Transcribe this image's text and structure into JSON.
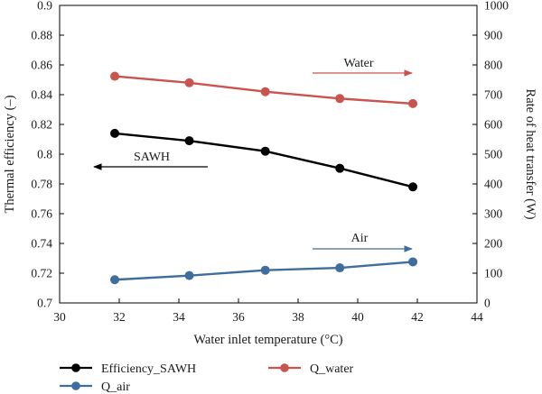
{
  "chart_data": {
    "type": "line",
    "xlabel": "Water inlet temperature (°C)",
    "ylabel_left": "Thermal efficiency (–)",
    "ylabel_right": "Rate of heat transfer (W)",
    "xlim": [
      30,
      44
    ],
    "ylim_left": [
      0.7,
      0.9
    ],
    "ylim_right": [
      0,
      1000
    ],
    "x_ticks": [
      "30",
      "32",
      "34",
      "36",
      "38",
      "40",
      "42",
      "44"
    ],
    "y_left_ticks": [
      "0.7",
      "0.72",
      "0.74",
      "0.76",
      "0.78",
      "0.8",
      "0.82",
      "0.84",
      "0.86",
      "0.88",
      "0.9"
    ],
    "y_right_ticks": [
      "0",
      "100",
      "200",
      "300",
      "400",
      "500",
      "600",
      "700",
      "800",
      "900",
      "1000"
    ],
    "grid": false,
    "legend_position": "bottom",
    "series": [
      {
        "name": "Efficiency_SAWH",
        "axis": "left",
        "color": "#000000",
        "x": [
          31.85,
          34.35,
          36.9,
          39.4,
          41.85
        ],
        "y": [
          0.814,
          0.809,
          0.802,
          0.7905,
          0.778
        ]
      },
      {
        "name": "Q_water",
        "axis": "right",
        "color": "#c9534f",
        "x": [
          31.85,
          34.35,
          36.9,
          39.4,
          41.85
        ],
        "y": [
          762,
          740,
          710,
          687,
          670
        ]
      },
      {
        "name": "Q_air",
        "axis": "right",
        "color": "#3f6d9e",
        "x": [
          31.85,
          34.35,
          36.9,
          39.4,
          41.85
        ],
        "y": [
          78,
          92,
          110,
          118,
          138
        ]
      }
    ],
    "annotations": [
      {
        "label": "Water",
        "target_axis": "right",
        "direction": "right",
        "color": "#c9534f"
      },
      {
        "label": "SAWH",
        "target_axis": "left",
        "direction": "left",
        "color": "#000000"
      },
      {
        "label": "Air",
        "target_axis": "right",
        "direction": "right",
        "color": "#3f6d9e"
      }
    ]
  }
}
